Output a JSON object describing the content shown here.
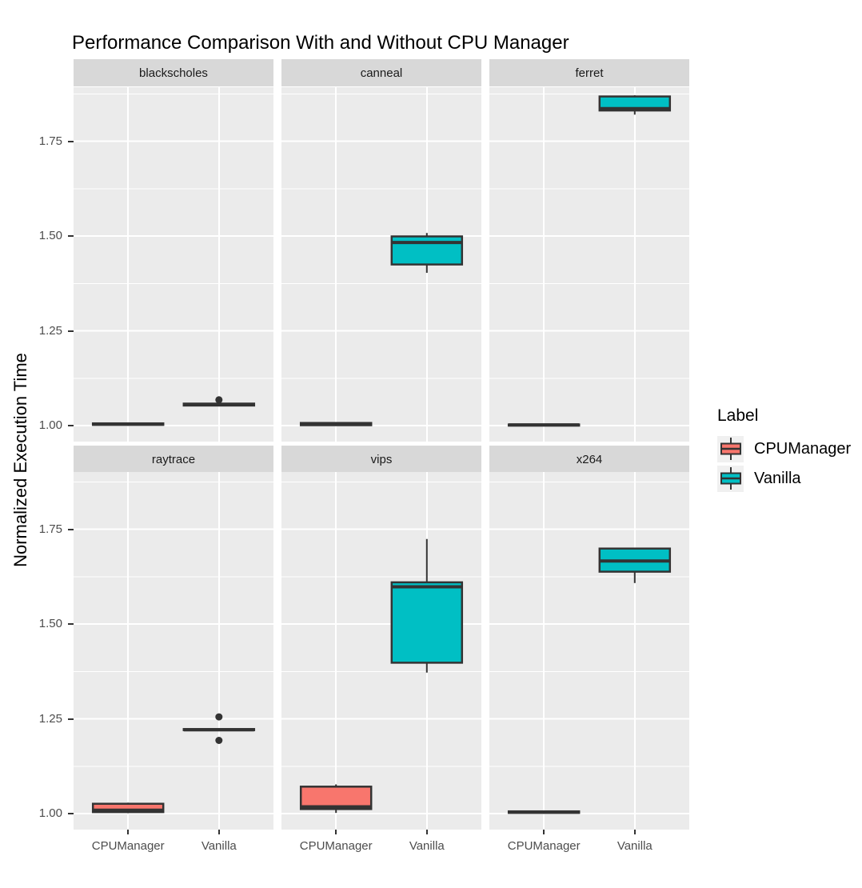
{
  "title": "Performance Comparison With and Without CPU Manager",
  "ylabel": "Normalized Execution Time",
  "xlabel": "",
  "colors": {
    "CPUManager": "#F8766D",
    "Vanilla": "#00BFC4",
    "box_border": "#333333",
    "panel_background": "#EBEBEB",
    "strip_background": "#D8D8D8",
    "gridline": "#FFFFFF",
    "axis_text": "#4D4D4D",
    "title_text": "#000000"
  },
  "legend": {
    "title": "Label",
    "entries": [
      {
        "label": "CPUManager",
        "color": "#F8766D"
      },
      {
        "label": "Vanilla",
        "color": "#00BFC4"
      }
    ]
  },
  "chart_data": {
    "type": "boxplot",
    "title": "Performance Comparison With and Without CPU Manager",
    "xlabel": "",
    "ylabel": "Normalized Execution Time",
    "legend_title": "Label",
    "legend_position": "right",
    "grid": "white major+minor gridlines on grey panel (ggplot theme_grey), faceted 2 rows x 3 cols",
    "categories": [
      "CPUManager",
      "Vanilla"
    ],
    "series_colors": {
      "CPUManager": "#F8766D",
      "Vanilla": "#00BFC4"
    },
    "yticks": [
      {
        "value": 1.0,
        "label": "1.00"
      },
      {
        "value": 1.25,
        "label": "1.25"
      },
      {
        "value": 1.5,
        "label": "1.50"
      },
      {
        "value": 1.75,
        "label": "1.75"
      }
    ],
    "yticks_minor": [
      1.125,
      1.375,
      1.625,
      1.875
    ],
    "ylim": [
      0.9578,
      1.8924
    ],
    "facets": [
      {
        "name": "blackscholes",
        "boxes": [
          {
            "group": "CPUManager",
            "min": 1.001,
            "q1": 1.002,
            "median": 1.004,
            "q3": 1.006,
            "max": 1.007,
            "outliers": []
          },
          {
            "group": "Vanilla",
            "min": 1.052,
            "q1": 1.053,
            "median": 1.055,
            "q3": 1.058,
            "max": 1.06,
            "outliers": [
              1.068
            ]
          }
        ]
      },
      {
        "name": "canneal",
        "boxes": [
          {
            "group": "CPUManager",
            "min": 0.999,
            "q1": 1.001,
            "median": 1.004,
            "q3": 1.007,
            "max": 1.009,
            "outliers": []
          },
          {
            "group": "Vanilla",
            "min": 1.403,
            "q1": 1.425,
            "median": 1.483,
            "q3": 1.499,
            "max": 1.508,
            "outliers": []
          }
        ]
      },
      {
        "name": "ferret",
        "boxes": [
          {
            "group": "CPUManager",
            "min": 0.999,
            "q1": 1.0,
            "median": 1.002,
            "q3": 1.003,
            "max": 1.004,
            "outliers": []
          },
          {
            "group": "Vanilla",
            "min": 1.82,
            "q1": 1.831,
            "median": 1.836,
            "q3": 1.868,
            "max": 1.871,
            "outliers": []
          }
        ]
      },
      {
        "name": "raytrace",
        "boxes": [
          {
            "group": "CPUManager",
            "min": 1.001,
            "q1": 1.004,
            "median": 1.009,
            "q3": 1.026,
            "max": 1.029,
            "outliers": []
          },
          {
            "group": "Vanilla",
            "min": 1.219,
            "q1": 1.22,
            "median": 1.221,
            "q3": 1.223,
            "max": 1.224,
            "outliers": [
              1.255,
              1.193
            ]
          }
        ]
      },
      {
        "name": "vips",
        "boxes": [
          {
            "group": "CPUManager",
            "min": 1.002,
            "q1": 1.012,
            "median": 1.018,
            "q3": 1.071,
            "max": 1.077,
            "outliers": []
          },
          {
            "group": "Vanilla",
            "min": 1.372,
            "q1": 1.398,
            "median": 1.598,
            "q3": 1.61,
            "max": 1.724,
            "outliers": []
          }
        ]
      },
      {
        "name": "x264",
        "boxes": [
          {
            "group": "CPUManager",
            "min": 1.001,
            "q1": 1.002,
            "median": 1.004,
            "q3": 1.006,
            "max": 1.007,
            "outliers": []
          },
          {
            "group": "Vanilla",
            "min": 1.608,
            "q1": 1.638,
            "median": 1.666,
            "q3": 1.699,
            "max": 1.7,
            "outliers": []
          }
        ]
      }
    ]
  }
}
